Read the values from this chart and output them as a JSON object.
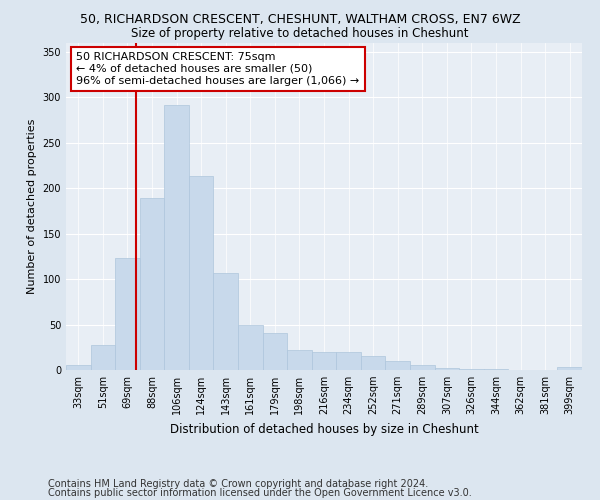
{
  "title_line1": "50, RICHARDSON CRESCENT, CHESHUNT, WALTHAM CROSS, EN7 6WZ",
  "title_line2": "Size of property relative to detached houses in Cheshunt",
  "xlabel": "Distribution of detached houses by size in Cheshunt",
  "ylabel": "Number of detached properties",
  "categories": [
    "33sqm",
    "51sqm",
    "69sqm",
    "88sqm",
    "106sqm",
    "124sqm",
    "143sqm",
    "161sqm",
    "179sqm",
    "198sqm",
    "216sqm",
    "234sqm",
    "252sqm",
    "271sqm",
    "289sqm",
    "307sqm",
    "326sqm",
    "344sqm",
    "362sqm",
    "381sqm",
    "399sqm"
  ],
  "values": [
    5,
    28,
    123,
    189,
    291,
    213,
    107,
    50,
    41,
    22,
    20,
    20,
    15,
    10,
    5,
    2,
    1,
    1,
    0,
    0,
    3
  ],
  "bar_color": "#c8d9eb",
  "bar_edge_color": "#aec6dc",
  "vline_color": "#cc0000",
  "vline_pos": 2.33,
  "annotation_text": "50 RICHARDSON CRESCENT: 75sqm\n← 4% of detached houses are smaller (50)\n96% of semi-detached houses are larger (1,066) →",
  "annotation_box_color": "#ffffff",
  "annotation_box_edge_color": "#cc0000",
  "ylim": [
    0,
    360
  ],
  "yticks": [
    0,
    50,
    100,
    150,
    200,
    250,
    300,
    350
  ],
  "footer_line1": "Contains HM Land Registry data © Crown copyright and database right 2024.",
  "footer_line2": "Contains public sector information licensed under the Open Government Licence v3.0.",
  "bg_color": "#dce6f0",
  "plot_bg_color": "#e8eef5",
  "title1_fontsize": 9,
  "title2_fontsize": 8.5,
  "xlabel_fontsize": 8.5,
  "ylabel_fontsize": 8,
  "tick_fontsize": 7,
  "footer_fontsize": 7,
  "annotation_fontsize": 8
}
